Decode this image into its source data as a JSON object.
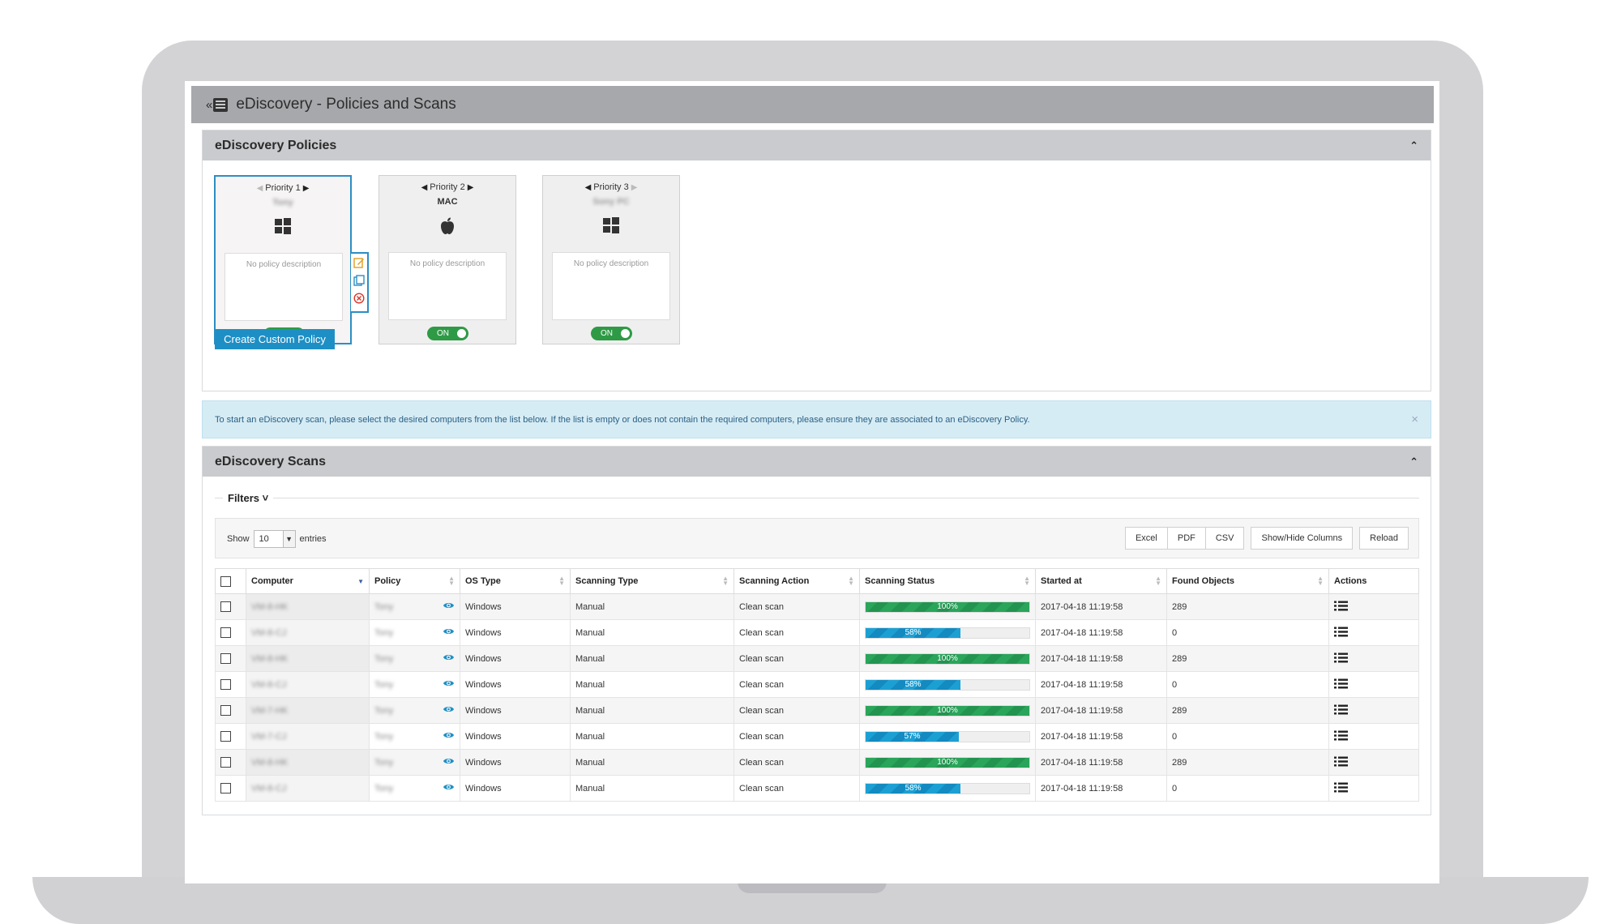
{
  "header": {
    "title": "eDiscovery - Policies and Scans",
    "menu_chevron": "«"
  },
  "policies_panel": {
    "title": "eDiscovery Policies",
    "cards": [
      {
        "priority": "Priority 1",
        "name": "Tony",
        "os_icon": "windows-icon",
        "description": "No policy description",
        "toggle": "ON",
        "selected": true
      },
      {
        "priority": "Priority 2",
        "name": "MAC",
        "os_icon": "apple-icon",
        "description": "No policy description",
        "toggle": "ON",
        "selected": false
      },
      {
        "priority": "Priority 3",
        "name": "Sony PC",
        "os_icon": "windows-icon",
        "description": "No policy description",
        "toggle": "ON",
        "selected": false
      }
    ],
    "create_button": "Create Custom Policy"
  },
  "info_alert": {
    "text": "To start an eDiscovery scan, please select the desired computers from the list below. If the list is empty or does not contain the required computers, please ensure they are associated to an eDiscovery Policy.",
    "close": "×"
  },
  "scans_panel": {
    "title": "eDiscovery Scans",
    "filters_label": "Filters",
    "show_label": "Show",
    "entries_value": "10",
    "entries_label": "entries",
    "buttons": {
      "excel": "Excel",
      "pdf": "PDF",
      "csv": "CSV",
      "show_hide": "Show/Hide Columns",
      "reload": "Reload"
    },
    "columns": [
      "Computer",
      "Policy",
      "OS Type",
      "Scanning Type",
      "Scanning Action",
      "Scanning Status",
      "Started at",
      "Found Objects",
      "Actions"
    ],
    "rows": [
      {
        "computer": "VM-8-HK",
        "policy": "Tony",
        "os": "Windows",
        "type": "Manual",
        "action": "Clean scan",
        "status": "100%",
        "progress": 100,
        "started": "2017-04-18 11:19:58",
        "found": "289"
      },
      {
        "computer": "VM-8-CJ",
        "policy": "Tony",
        "os": "Windows",
        "type": "Manual",
        "action": "Clean scan",
        "status": "58%",
        "progress": 58,
        "started": "2017-04-18 11:19:58",
        "found": "0"
      },
      {
        "computer": "VM-8-HK",
        "policy": "Tony",
        "os": "Windows",
        "type": "Manual",
        "action": "Clean scan",
        "status": "100%",
        "progress": 100,
        "started": "2017-04-18 11:19:58",
        "found": "289"
      },
      {
        "computer": "VM-8-CJ",
        "policy": "Tony",
        "os": "Windows",
        "type": "Manual",
        "action": "Clean scan",
        "status": "58%",
        "progress": 58,
        "started": "2017-04-18 11:19:58",
        "found": "0"
      },
      {
        "computer": "VM-7-HK",
        "policy": "Tony",
        "os": "Windows",
        "type": "Manual",
        "action": "Clean scan",
        "status": "100%",
        "progress": 100,
        "started": "2017-04-18 11:19:58",
        "found": "289"
      },
      {
        "computer": "VM-7-CJ",
        "policy": "Tony",
        "os": "Windows",
        "type": "Manual",
        "action": "Clean scan",
        "status": "57%",
        "progress": 57,
        "started": "2017-04-18 11:19:58",
        "found": "0"
      },
      {
        "computer": "VM-8-HK",
        "policy": "Tony",
        "os": "Windows",
        "type": "Manual",
        "action": "Clean scan",
        "status": "100%",
        "progress": 100,
        "started": "2017-04-18 11:19:58",
        "found": "289"
      },
      {
        "computer": "VM-8-CJ",
        "policy": "Tony",
        "os": "Windows",
        "type": "Manual",
        "action": "Clean scan",
        "status": "58%",
        "progress": 58,
        "started": "2017-04-18 11:19:58",
        "found": "0"
      }
    ]
  },
  "colors": {
    "accent": "#1e8fc5",
    "toggle_on": "#2e9a45",
    "progress_green": "#2aa55a",
    "progress_blue": "#1ca0d3"
  }
}
